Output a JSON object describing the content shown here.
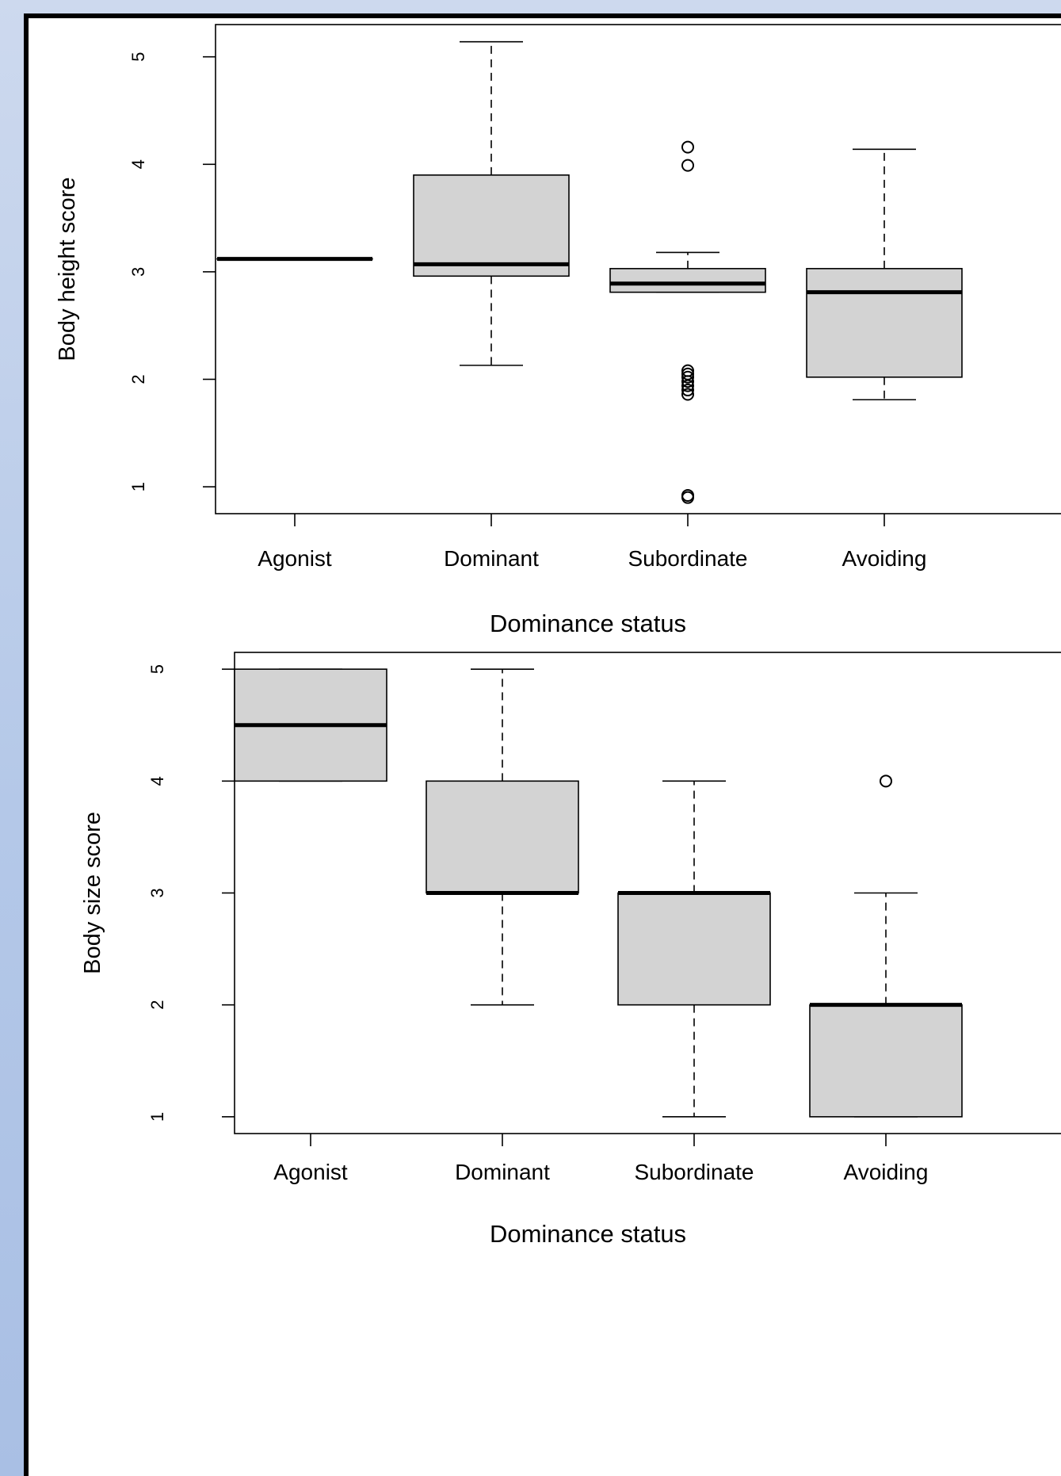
{
  "colors": {
    "box_fill": "#d3d3d3",
    "stroke": "#000000",
    "background": "#ffffff"
  },
  "chart_data": [
    {
      "type": "box",
      "xlabel": "Dominance status",
      "ylabel": "Body height score",
      "categories": [
        "Agonist",
        "Dominant",
        "Subordinate",
        "Avoiding"
      ],
      "yticks": [
        "1",
        "2",
        "3",
        "4",
        "5"
      ],
      "ylim": [
        0.75,
        5.3
      ],
      "boxes": [
        {
          "category": "Agonist",
          "whisker_low": 3.12,
          "q1": 3.12,
          "median": 3.12,
          "q3": 3.12,
          "whisker_high": 3.12,
          "outliers": []
        },
        {
          "category": "Dominant",
          "whisker_low": 2.13,
          "q1": 2.96,
          "median": 3.07,
          "q3": 3.9,
          "whisker_high": 5.14,
          "outliers": []
        },
        {
          "category": "Subordinate",
          "whisker_low": 2.81,
          "q1": 2.81,
          "median": 2.89,
          "q3": 3.03,
          "whisker_high": 3.18,
          "outliers": [
            4.16,
            3.99,
            2.08,
            2.05,
            2.02,
            1.98,
            1.94,
            1.9,
            1.86,
            0.92,
            0.9
          ]
        },
        {
          "category": "Avoiding",
          "whisker_low": 1.81,
          "q1": 2.02,
          "median": 2.81,
          "q3": 3.03,
          "whisker_high": 4.14,
          "outliers": []
        }
      ]
    },
    {
      "type": "box",
      "xlabel": "Dominance status",
      "ylabel": "Body size score",
      "categories": [
        "Agonist",
        "Dominant",
        "Subordinate",
        "Avoiding"
      ],
      "yticks": [
        "1",
        "2",
        "3",
        "4",
        "5"
      ],
      "ylim": [
        0.85,
        5.15
      ],
      "boxes": [
        {
          "category": "Agonist",
          "whisker_low": 4,
          "q1": 4,
          "median": 4.5,
          "q3": 5,
          "whisker_high": 5,
          "outliers": []
        },
        {
          "category": "Dominant",
          "whisker_low": 2,
          "q1": 3,
          "median": 3,
          "q3": 4,
          "whisker_high": 5,
          "outliers": []
        },
        {
          "category": "Subordinate",
          "whisker_low": 1,
          "q1": 2,
          "median": 3,
          "q3": 3,
          "whisker_high": 4,
          "outliers": []
        },
        {
          "category": "Avoiding",
          "whisker_low": 1,
          "q1": 1,
          "median": 2,
          "q3": 2,
          "whisker_high": 3,
          "outliers": [
            4
          ]
        }
      ]
    }
  ]
}
